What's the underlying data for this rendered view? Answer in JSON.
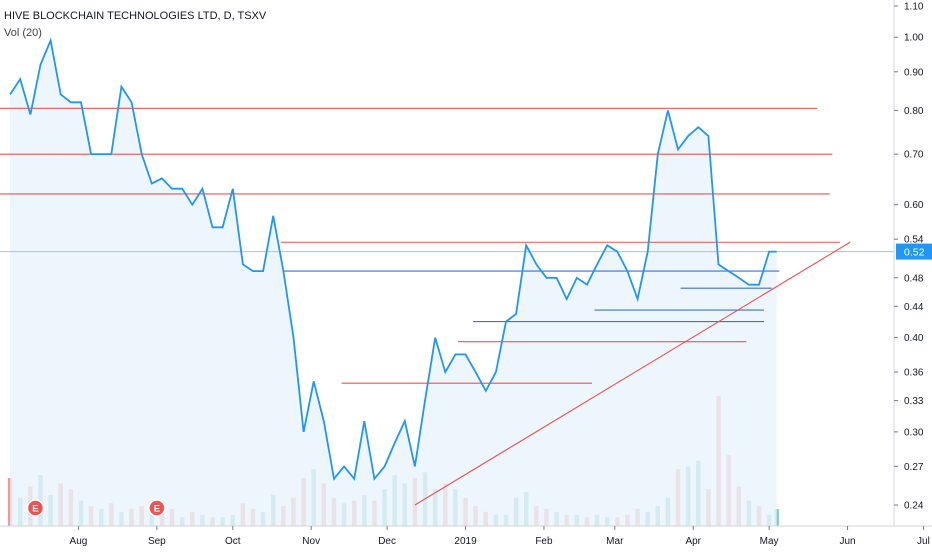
{
  "header": {
    "title": "HIVE BLOCKCHAIN TECHNOLOGIES LTD, D, TSXV",
    "volume_label": "Vol (20)"
  },
  "colors": {
    "price_line": "#2196f3",
    "price_fill": "#e8f2fc",
    "vol_up": "#7fcdc0",
    "vol_down": "#ef9a9a",
    "resistance": "#ef5350",
    "support": "#3f6fd1",
    "current_price_line": "#90caf9",
    "current_badge": "#2196f3",
    "earnings_badge": "#ef5350"
  },
  "chart_data": {
    "type": "line",
    "title": "HIVE BLOCKCHAIN TECHNOLOGIES LTD, D, TSXV",
    "yscale": "log",
    "ylim": [
      0.225,
      1.12
    ],
    "y_ticks": [
      "1.10",
      "1.00",
      "0.90",
      "0.80",
      "0.70",
      "0.60",
      "0.54",
      "0.48",
      "0.44",
      "0.40",
      "0.36",
      "0.33",
      "0.30",
      "0.27",
      "0.24"
    ],
    "x_ticks": [
      "Aug",
      "Sep",
      "Oct",
      "Nov",
      "Dec",
      "2019",
      "Feb",
      "Mar",
      "Apr",
      "May",
      "Jun",
      "Jul"
    ],
    "current_price": "0.52",
    "earnings_markers": [
      "E",
      "E"
    ],
    "series": [
      {
        "type": "line",
        "x": [
          "2018-07-05",
          "2018-07-09",
          "2018-07-13",
          "2018-07-17",
          "2018-07-21",
          "2018-07-25",
          "2018-07-29",
          "2018-08-02",
          "2018-08-06",
          "2018-08-10",
          "2018-08-14",
          "2018-08-18",
          "2018-08-22",
          "2018-08-26",
          "2018-08-30",
          "2018-09-03",
          "2018-09-07",
          "2018-09-11",
          "2018-09-15",
          "2018-09-19",
          "2018-09-23",
          "2018-09-27",
          "2018-10-01",
          "2018-10-05",
          "2018-10-09",
          "2018-10-13",
          "2018-10-17",
          "2018-10-21",
          "2018-10-25",
          "2018-10-29",
          "2018-11-02",
          "2018-11-06",
          "2018-11-10",
          "2018-11-14",
          "2018-11-18",
          "2018-11-22",
          "2018-11-26",
          "2018-11-30",
          "2018-12-04",
          "2018-12-08",
          "2018-12-12",
          "2018-12-16",
          "2018-12-20",
          "2018-12-24",
          "2018-12-28",
          "2019-01-01",
          "2019-01-05",
          "2019-01-09",
          "2019-01-13",
          "2019-01-17",
          "2019-01-21",
          "2019-01-25",
          "2019-01-29",
          "2019-02-02",
          "2019-02-06",
          "2019-02-10",
          "2019-02-14",
          "2019-02-18",
          "2019-02-22",
          "2019-02-26",
          "2019-03-02",
          "2019-03-06",
          "2019-03-10",
          "2019-03-14",
          "2019-03-18",
          "2019-03-22",
          "2019-03-26",
          "2019-03-30",
          "2019-04-03",
          "2019-04-07",
          "2019-04-11",
          "2019-04-15",
          "2019-04-19",
          "2019-04-23",
          "2019-04-27",
          "2019-05-01",
          "2019-05-04"
        ],
        "y": [
          0.84,
          0.88,
          0.79,
          0.92,
          0.99,
          0.84,
          0.82,
          0.82,
          0.7,
          0.7,
          0.7,
          0.86,
          0.82,
          0.7,
          0.64,
          0.65,
          0.63,
          0.63,
          0.6,
          0.63,
          0.56,
          0.56,
          0.63,
          0.5,
          0.49,
          0.49,
          0.58,
          0.49,
          0.4,
          0.3,
          0.35,
          0.31,
          0.26,
          0.27,
          0.26,
          0.31,
          0.26,
          0.27,
          0.29,
          0.31,
          0.27,
          0.33,
          0.4,
          0.36,
          0.38,
          0.38,
          0.36,
          0.34,
          0.36,
          0.42,
          0.43,
          0.53,
          0.5,
          0.48,
          0.48,
          0.45,
          0.48,
          0.47,
          0.5,
          0.53,
          0.52,
          0.49,
          0.45,
          0.52,
          0.7,
          0.8,
          0.71,
          0.74,
          0.76,
          0.74,
          0.5,
          0.49,
          0.48,
          0.47,
          0.47,
          0.52,
          0.52
        ]
      },
      {
        "type": "bar",
        "name": "Vol",
        "values": [
          34,
          20,
          28,
          36,
          22,
          30,
          26,
          18,
          14,
          12,
          16,
          10,
          12,
          14,
          8,
          10,
          12,
          6,
          10,
          8,
          6,
          6,
          8,
          16,
          12,
          10,
          22,
          14,
          20,
          34,
          40,
          30,
          20,
          16,
          18,
          22,
          18,
          26,
          36,
          30,
          34,
          38,
          26,
          30,
          26,
          20,
          14,
          10,
          8,
          8,
          20,
          24,
          14,
          12,
          10,
          8,
          8,
          6,
          8,
          6,
          6,
          8,
          12,
          10,
          14,
          20,
          40,
          42,
          46,
          26,
          92,
          50,
          28,
          18,
          14,
          8,
          12
        ],
        "up": [
          0,
          1,
          0,
          1,
          1,
          0,
          0,
          1,
          0,
          1,
          0,
          1,
          0,
          0,
          1,
          0,
          0,
          1,
          0,
          1,
          0,
          1,
          1,
          0,
          0,
          1,
          1,
          0,
          0,
          0,
          1,
          0,
          0,
          1,
          0,
          1,
          0,
          1,
          1,
          1,
          0,
          1,
          1,
          0,
          1,
          0,
          0,
          0,
          1,
          1,
          1,
          1,
          0,
          0,
          1,
          0,
          1,
          0,
          1,
          1,
          0,
          0,
          0,
          1,
          1,
          1,
          0,
          1,
          1,
          0,
          0,
          0,
          0,
          1,
          0,
          1,
          1
        ]
      }
    ],
    "annotations": {
      "resistance_lines": [
        {
          "from": "2018-07-01",
          "to": "2019-05-20",
          "price": 0.805
        },
        {
          "from": "2018-07-01",
          "to": "2019-05-26",
          "price": 0.7
        },
        {
          "from": "2018-07-01",
          "to": "2019-05-25",
          "price": 0.62
        },
        {
          "from": "2018-10-20",
          "to": "2019-05-29",
          "price": 0.535
        },
        {
          "from": "2018-11-13",
          "to": "2019-02-20",
          "price": 0.348
        },
        {
          "from": "2018-12-29",
          "to": "2019-04-22",
          "price": 0.395
        }
      ],
      "support_lines": [
        {
          "from": "2018-10-21",
          "to": "2019-05-05",
          "price": 0.49
        },
        {
          "from": "2019-01-04",
          "to": "2019-04-29",
          "price": 0.42
        },
        {
          "from": "2019-02-21",
          "to": "2019-04-29",
          "price": 0.435
        },
        {
          "from": "2019-03-27",
          "to": "2019-05-02",
          "price": 0.465
        }
      ],
      "trendline": {
        "from": "2018-12-12",
        "from_price": 0.24,
        "to": "2019-06-02",
        "to_price": 0.535
      }
    }
  }
}
